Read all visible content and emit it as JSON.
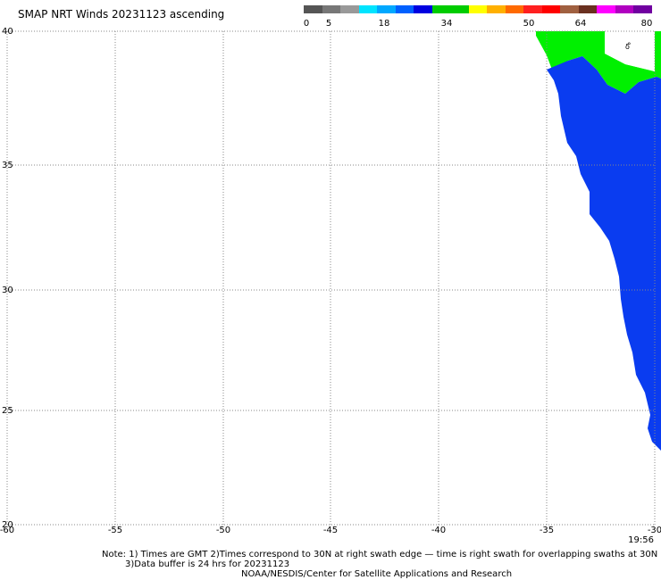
{
  "title": "SMAP NRT Winds 20231123 ascending",
  "legend": {
    "ticks": [
      "0",
      "5",
      "18",
      "34",
      "50",
      "64",
      "80"
    ],
    "colors": [
      "#555555",
      "#777777",
      "#999999",
      "#00e4ff",
      "#00a8ff",
      "#0060ff",
      "#0000e0",
      "#00cc00",
      "#00cc00",
      "#ffff00",
      "#ffb000",
      "#ff6a00",
      "#ff2020",
      "#ff0000",
      "#a06040",
      "#6a3020",
      "#ff00ff",
      "#b000c0",
      "#7000a0"
    ]
  },
  "map": {
    "lat_ticks": [
      "40",
      "35",
      "30",
      "25",
      "20"
    ],
    "lon_ticks": [
      "-60",
      "-55",
      "-50",
      "-45",
      "-40",
      "-35",
      "-30"
    ],
    "colors": {
      "blue_wind": "#0a3cf0",
      "green_wind": "#00f000",
      "grid": "#888888"
    }
  },
  "timestamp": "19:56",
  "notes": {
    "line1": "Note: 1) Times are GMT 2)Times correspond to 30N at right swath edge — time is right swath for overlapping swaths at 30N",
    "line2": "3)Data buffer is 24 hrs for 20231123",
    "line3": "NOAA/NESDIS/Center for Satellite Applications and Research"
  }
}
